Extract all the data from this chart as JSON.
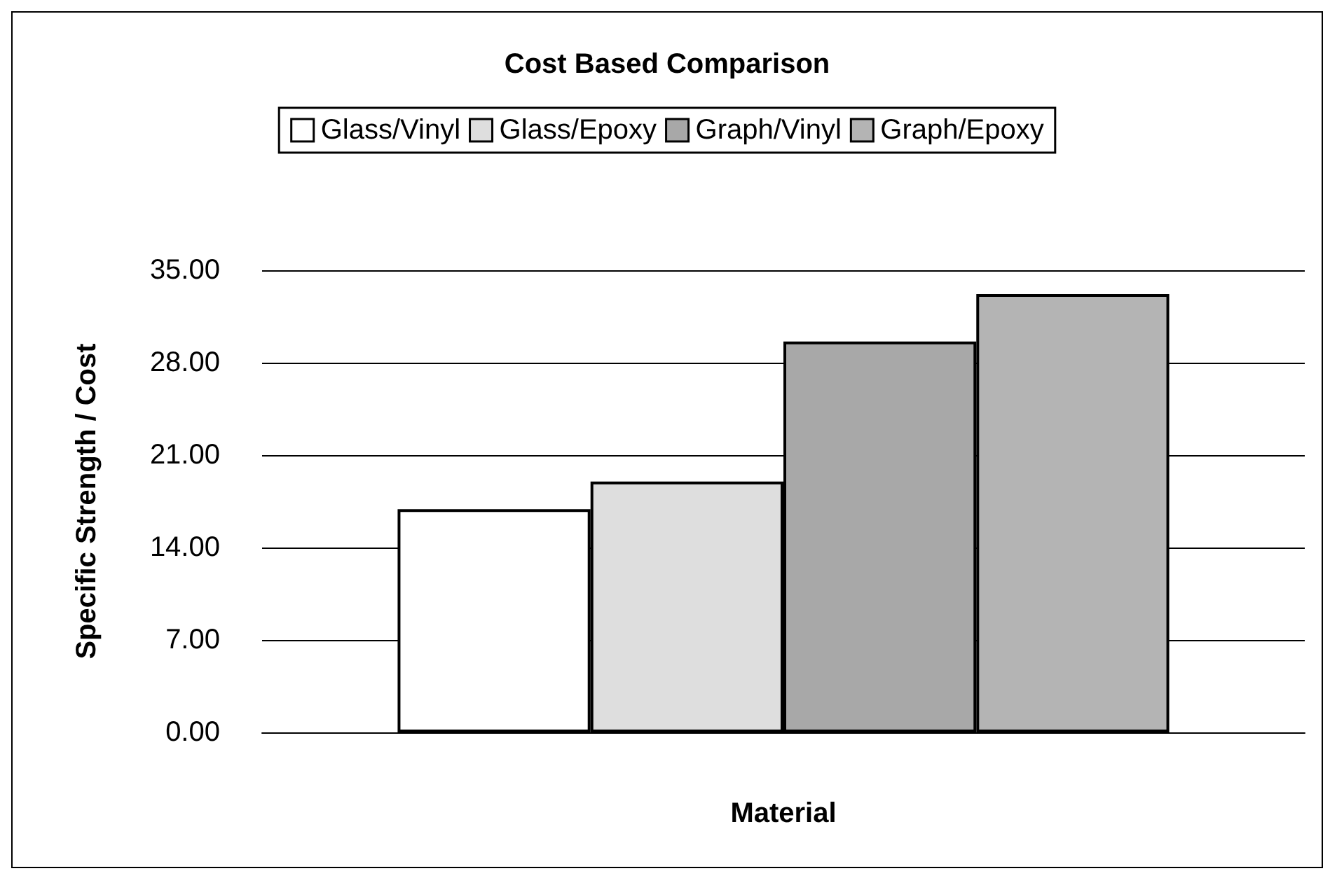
{
  "chart_data": {
    "type": "bar",
    "title": "Cost Based Comparison",
    "xlabel": "Material",
    "ylabel": "Specific Strength / Cost",
    "categories": [
      null
    ],
    "series": [
      {
        "name": "Glass/Vinyl",
        "color": "#ffffff",
        "values": [
          16.9
        ]
      },
      {
        "name": "Glass/Epoxy",
        "color": "#dedede",
        "values": [
          19.0
        ]
      },
      {
        "name": "Graph/Vinyl",
        "color": "#a8a8a8",
        "values": [
          29.6
        ]
      },
      {
        "name": "Graph/Epoxy",
        "color": "#b4b4b4",
        "values": [
          33.2
        ]
      }
    ],
    "ylim": [
      0,
      35
    ],
    "yticks": [
      {
        "value": 0,
        "label": "0.00"
      },
      {
        "value": 7,
        "label": "7.00"
      },
      {
        "value": 14,
        "label": "14.00"
      },
      {
        "value": 21,
        "label": "21.00"
      },
      {
        "value": 28,
        "label": "28.00"
      },
      {
        "value": 35,
        "label": "35.00"
      }
    ],
    "grid": "y",
    "legend": "top"
  }
}
